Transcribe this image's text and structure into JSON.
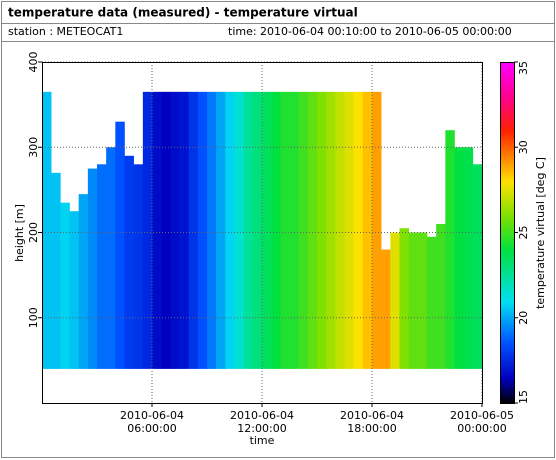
{
  "header": {
    "title": "temperature data (measured) - temperature virtual",
    "station": "station : METEOCAT1",
    "time_range": "time: 2010-06-04 00:10:00 to 2010-06-05 00:00:00"
  },
  "chart_data": {
    "type": "heatmap",
    "x_label": "time",
    "y_label": "height [m]",
    "colorbar_label": "temperature virtual [deg C]",
    "x": [
      "2010-06-04 00:00:00",
      "2010-06-04 00:30:00",
      "2010-06-04 01:00:00",
      "2010-06-04 01:30:00",
      "2010-06-04 02:00:00",
      "2010-06-04 02:30:00",
      "2010-06-04 03:00:00",
      "2010-06-04 03:30:00",
      "2010-06-04 04:00:00",
      "2010-06-04 04:30:00",
      "2010-06-04 05:00:00",
      "2010-06-04 05:30:00",
      "2010-06-04 06:00:00",
      "2010-06-04 06:30:00",
      "2010-06-04 07:00:00",
      "2010-06-04 07:30:00",
      "2010-06-04 08:00:00",
      "2010-06-04 08:30:00",
      "2010-06-04 09:00:00",
      "2010-06-04 09:30:00",
      "2010-06-04 10:00:00",
      "2010-06-04 10:30:00",
      "2010-06-04 11:00:00",
      "2010-06-04 11:30:00",
      "2010-06-04 12:00:00",
      "2010-06-04 12:30:00",
      "2010-06-04 13:00:00",
      "2010-06-04 13:30:00",
      "2010-06-04 14:00:00",
      "2010-06-04 14:30:00",
      "2010-06-04 15:00:00",
      "2010-06-04 15:30:00",
      "2010-06-04 16:00:00",
      "2010-06-04 16:30:00",
      "2010-06-04 17:00:00",
      "2010-06-04 17:30:00",
      "2010-06-04 18:00:00",
      "2010-06-04 18:30:00",
      "2010-06-04 19:00:00",
      "2010-06-04 19:30:00",
      "2010-06-04 20:00:00",
      "2010-06-04 20:30:00",
      "2010-06-04 21:00:00",
      "2010-06-04 21:30:00",
      "2010-06-04 22:00:00",
      "2010-06-04 22:30:00",
      "2010-06-04 23:00:00",
      "2010-06-04 23:30:00"
    ],
    "values": [
      20.5,
      20.5,
      20.8,
      20.5,
      20,
      19.5,
      19,
      19,
      18.5,
      18,
      17.8,
      17.5,
      16.8,
      16.5,
      16.8,
      17,
      17.8,
      18.5,
      19.2,
      20,
      20.8,
      21.5,
      22.5,
      23,
      23.5,
      24,
      24.5,
      24.5,
      25,
      25.5,
      26,
      26.5,
      27,
      27.5,
      28,
      28.5,
      29,
      29,
      27.5,
      26,
      25.5,
      25.5,
      25,
      25,
      24.5,
      24,
      23.8,
      23.5
    ],
    "tops": [
      365,
      270,
      235,
      225,
      245,
      275,
      280,
      300,
      330,
      290,
      280,
      365,
      365,
      365,
      365,
      365,
      365,
      365,
      365,
      365,
      365,
      365,
      365,
      365,
      365,
      365,
      365,
      365,
      365,
      365,
      365,
      365,
      365,
      365,
      365,
      365,
      365,
      180,
      200,
      205,
      200,
      200,
      195,
      210,
      320,
      300,
      300,
      280
    ],
    "bottom": 40,
    "xlim": [
      "2010-06-04 00:00:00",
      "2010-06-05 00:00:00"
    ],
    "xticks": [
      {
        "value": "2010-06-04 06:00:00",
        "label": "2010-06-04 06:00:00"
      },
      {
        "value": "2010-06-04 12:00:00",
        "label": "2010-06-04 12:00:00"
      },
      {
        "value": "2010-06-04 18:00:00",
        "label": "2010-06-04 18:00:00"
      },
      {
        "value": "2010-06-05 00:00:00",
        "label": "2010-06-05 00:00:00"
      }
    ],
    "ylim": [
      0,
      400
    ],
    "yticks": [
      100,
      200,
      300,
      400
    ],
    "clim": [
      15,
      35
    ],
    "cticks": [
      15,
      20,
      25,
      30,
      35
    ],
    "colorscale": [
      {
        "value": 15,
        "color": "#000000"
      },
      {
        "value": 16.5,
        "color": "#0000c0"
      },
      {
        "value": 18.5,
        "color": "#0050ff"
      },
      {
        "value": 21,
        "color": "#00e0f0"
      },
      {
        "value": 24,
        "color": "#00e040"
      },
      {
        "value": 26,
        "color": "#80e000"
      },
      {
        "value": 28,
        "color": "#ffe000"
      },
      {
        "value": 31,
        "color": "#ff2000"
      },
      {
        "value": 33,
        "color": "#ff0090"
      },
      {
        "value": 35,
        "color": "#ff00ff"
      }
    ],
    "grid": true
  }
}
